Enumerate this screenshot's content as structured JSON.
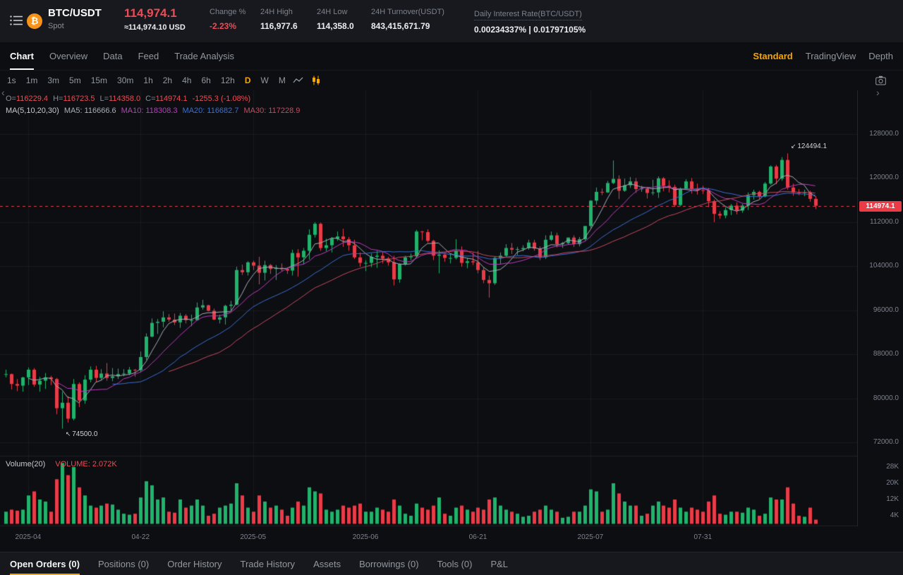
{
  "header": {
    "logo_glyph": "₿",
    "pair": "BTC/USDT",
    "market_type": "Spot",
    "last_price": "114,974.1",
    "usd_price": "≈114,974.10 USD",
    "change_label": "Change %",
    "change_value": "-2.23%",
    "high_label": "24H High",
    "high_value": "116,977.6",
    "low_label": "24H Low",
    "low_value": "114,358.0",
    "turnover_label": "24H Turnover(USDT)",
    "turnover_value": "843,415,671.79",
    "interest_label": "Daily Interest Rate(BTC/USDT)",
    "interest_value": "0.00234337% | 0.01797105%"
  },
  "tabs": {
    "items": [
      {
        "label": "Chart",
        "active": true
      },
      {
        "label": "Overview"
      },
      {
        "label": "Data"
      },
      {
        "label": "Feed"
      },
      {
        "label": "Trade Analysis"
      }
    ],
    "right": [
      {
        "label": "Standard",
        "accent": true
      },
      {
        "label": "TradingView"
      },
      {
        "label": "Depth"
      }
    ]
  },
  "timeframes": {
    "items": [
      "1s",
      "1m",
      "3m",
      "5m",
      "15m",
      "30m",
      "1h",
      "2h",
      "4h",
      "6h",
      "12h",
      "D",
      "W",
      "M"
    ],
    "active": "D"
  },
  "icons": {
    "chevron_left": "‹",
    "chevron_right": "›",
    "high_arrow": "↙",
    "low_arrow": "↖"
  },
  "chart": {
    "ohlc_line": {
      "o_label": "O=",
      "o": "116229.4",
      "h_label": "H=",
      "h": "116723.5",
      "l_label": "L=",
      "l": "114358.0",
      "c_label": "C=",
      "c": "114974.1",
      "change": "-1255.3 (-1.08%)"
    },
    "ma_line": {
      "group": "MA(5,10,20,30)",
      "ma5": "MA5: 116666.6",
      "ma10": "MA10: 118308.3",
      "ma20": "MA20: 116682.7",
      "ma30": "MA30: 117228.9"
    },
    "volume_line": {
      "label": "Volume(20)",
      "value_label": "VOLUME: 2.072K"
    },
    "price_ticks": [
      "128000.0",
      "120000.0",
      "112000.0",
      "104000.0",
      "96000.0",
      "88000.0",
      "80000.0",
      "72000.0"
    ],
    "volume_ticks": [
      "28K",
      "20K",
      "12K",
      "4K"
    ],
    "x_ticks": [
      {
        "label": "2025-04",
        "i": 4
      },
      {
        "label": "04-22",
        "i": 24
      },
      {
        "label": "2025-05",
        "i": 44
      },
      {
        "label": "2025-06",
        "i": 64
      },
      {
        "label": "06-21",
        "i": 84
      },
      {
        "label": "2025-07",
        "i": 104
      },
      {
        "label": "07-31",
        "i": 124
      }
    ],
    "last_price_tag": "114974.1",
    "last_price_value": 114974.1,
    "annotations": {
      "high": {
        "text": "124494.1",
        "i": 139,
        "value": 124494.1
      },
      "low": {
        "text": "74500.0",
        "i": 10,
        "value": 74500
      }
    },
    "colors": {
      "up": "#21b26c",
      "down": "#ea3b47",
      "ma5": "#aab0b9",
      "ma10": "#c13ac1",
      "ma20": "#3c6fd1",
      "ma30": "#c94a5f",
      "accent": "#f7a600",
      "grid": "rgba(255,255,255,0.05)"
    },
    "candles": [
      [
        84400,
        85200,
        83800,
        84400,
        6000
      ],
      [
        84400,
        84500,
        81600,
        82600,
        7000
      ],
      [
        82600,
        83500,
        81300,
        82300,
        6500
      ],
      [
        82300,
        83900,
        81200,
        83800,
        7000
      ],
      [
        83800,
        85600,
        82400,
        85200,
        14000
      ],
      [
        85200,
        85500,
        82100,
        82500,
        16000
      ],
      [
        82500,
        83900,
        81200,
        83200,
        12000
      ],
      [
        83200,
        84600,
        81700,
        83800,
        11000
      ],
      [
        83800,
        84100,
        82400,
        83500,
        6000
      ],
      [
        83500,
        83700,
        77100,
        78200,
        22000
      ],
      [
        78200,
        81200,
        74500,
        79200,
        30000
      ],
      [
        79200,
        80400,
        75600,
        76300,
        24000
      ],
      [
        76300,
        83500,
        76000,
        82600,
        28000
      ],
      [
        82600,
        82900,
        78400,
        79600,
        18000
      ],
      [
        79600,
        84200,
        79000,
        83400,
        14000
      ],
      [
        83400,
        85800,
        82900,
        85200,
        9000
      ],
      [
        85200,
        85900,
        83000,
        83700,
        8000
      ],
      [
        83700,
        85300,
        83300,
        84500,
        9000
      ],
      [
        84500,
        86400,
        83200,
        83700,
        10000
      ],
      [
        83700,
        85500,
        83100,
        84000,
        9500
      ],
      [
        84000,
        85400,
        83500,
        84400,
        7000
      ],
      [
        84400,
        85300,
        84000,
        84500,
        5000
      ],
      [
        84500,
        85700,
        84200,
        85200,
        4500
      ],
      [
        85200,
        85300,
        83900,
        85100,
        5000
      ],
      [
        85100,
        88500,
        84700,
        87500,
        13000
      ],
      [
        87500,
        91800,
        87000,
        91200,
        21000
      ],
      [
        91200,
        94500,
        91100,
        93700,
        19000
      ],
      [
        93700,
        94400,
        91700,
        93900,
        12000
      ],
      [
        93900,
        95800,
        92900,
        94700,
        13000
      ],
      [
        94700,
        95300,
        93900,
        94300,
        6000
      ],
      [
        94300,
        95400,
        93300,
        93800,
        5500
      ],
      [
        93800,
        95500,
        92800,
        95000,
        12000
      ],
      [
        95000,
        95300,
        93600,
        94200,
        8000
      ],
      [
        94200,
        95200,
        93100,
        94200,
        9000
      ],
      [
        94200,
        97400,
        94100,
        96500,
        12000
      ],
      [
        96500,
        97900,
        96100,
        96900,
        9000
      ],
      [
        96900,
        97000,
        95800,
        95900,
        4000
      ],
      [
        95900,
        96300,
        94200,
        94300,
        5000
      ],
      [
        94300,
        95200,
        93600,
        94700,
        8000
      ],
      [
        94700,
        97000,
        93400,
        96800,
        9000
      ],
      [
        96800,
        97700,
        95800,
        97000,
        10000
      ],
      [
        97000,
        103900,
        96900,
        103300,
        20000
      ],
      [
        103300,
        104300,
        102400,
        102900,
        14000
      ],
      [
        102900,
        104900,
        102300,
        104700,
        8000
      ],
      [
        104700,
        105000,
        103300,
        104100,
        6000
      ],
      [
        104100,
        105700,
        100700,
        102800,
        14000
      ],
      [
        102800,
        105000,
        101400,
        104200,
        11000
      ],
      [
        104200,
        104400,
        102600,
        103500,
        8000
      ],
      [
        103500,
        104200,
        101500,
        103700,
        9000
      ],
      [
        103700,
        104500,
        103100,
        103500,
        7000
      ],
      [
        103500,
        103700,
        102600,
        103200,
        4000
      ],
      [
        103200,
        107000,
        102300,
        106400,
        8000
      ],
      [
        106400,
        107100,
        102100,
        105600,
        11000
      ],
      [
        105600,
        107300,
        104300,
        106800,
        9000
      ],
      [
        106800,
        110700,
        105200,
        109700,
        18000
      ],
      [
        109700,
        112000,
        109200,
        111700,
        16000
      ],
      [
        111700,
        111900,
        106800,
        107300,
        15000
      ],
      [
        107300,
        109000,
        106700,
        107800,
        7000
      ],
      [
        107800,
        109300,
        106500,
        109000,
        6000
      ],
      [
        109000,
        110300,
        108600,
        109400,
        7000
      ],
      [
        109400,
        110800,
        107500,
        108900,
        9000
      ],
      [
        108900,
        109300,
        106800,
        107800,
        8000
      ],
      [
        107800,
        108800,
        105300,
        105600,
        9000
      ],
      [
        105600,
        106500,
        103900,
        104600,
        10000
      ],
      [
        104600,
        105100,
        103100,
        104600,
        6000
      ],
      [
        104600,
        106300,
        103800,
        105700,
        6000
      ],
      [
        105700,
        106800,
        103700,
        105900,
        8000
      ],
      [
        105900,
        106600,
        104500,
        105400,
        7000
      ],
      [
        105400,
        105700,
        104100,
        104700,
        6000
      ],
      [
        104700,
        105900,
        100500,
        101600,
        12000
      ],
      [
        101600,
        104500,
        101000,
        104400,
        9000
      ],
      [
        104400,
        105900,
        104100,
        105600,
        5000
      ],
      [
        105600,
        106300,
        105100,
        105800,
        4000
      ],
      [
        105800,
        110600,
        105700,
        110300,
        10000
      ],
      [
        110300,
        110400,
        108700,
        110200,
        8000
      ],
      [
        110200,
        110700,
        108300,
        108600,
        7000
      ],
      [
        108600,
        108800,
        105100,
        105900,
        9000
      ],
      [
        105900,
        106900,
        102700,
        106100,
        13000
      ],
      [
        106100,
        106200,
        104800,
        105500,
        5000
      ],
      [
        105500,
        106300,
        104500,
        105500,
        4000
      ],
      [
        105500,
        108900,
        105200,
        106800,
        8000
      ],
      [
        106800,
        107600,
        103900,
        104600,
        9000
      ],
      [
        104600,
        105500,
        103600,
        104900,
        7000
      ],
      [
        104900,
        106500,
        104200,
        104700,
        6000
      ],
      [
        104700,
        106800,
        102700,
        103300,
        8000
      ],
      [
        103300,
        103800,
        100900,
        101500,
        7000
      ],
      [
        101500,
        102300,
        98300,
        100900,
        12000
      ],
      [
        100900,
        105700,
        100600,
        105500,
        13000
      ],
      [
        105500,
        106500,
        104400,
        105900,
        9000
      ],
      [
        105900,
        108000,
        105700,
        107300,
        7000
      ],
      [
        107300,
        108200,
        106200,
        107000,
        6000
      ],
      [
        107000,
        107500,
        106000,
        107100,
        5000
      ],
      [
        107100,
        107800,
        106700,
        107300,
        3500
      ],
      [
        107300,
        108800,
        107000,
        108300,
        4000
      ],
      [
        108300,
        108800,
        106800,
        107200,
        6000
      ],
      [
        107200,
        107600,
        105100,
        105600,
        7000
      ],
      [
        105600,
        109600,
        105300,
        108800,
        9000
      ],
      [
        108800,
        110300,
        108600,
        109600,
        7000
      ],
      [
        109600,
        110100,
        107400,
        108000,
        6000
      ],
      [
        108000,
        108400,
        107300,
        108200,
        3000
      ],
      [
        108200,
        109200,
        107900,
        109200,
        3500
      ],
      [
        109200,
        109600,
        107500,
        108000,
        6000
      ],
      [
        108000,
        109300,
        107600,
        108900,
        6000
      ],
      [
        108900,
        111300,
        108600,
        111300,
        9000
      ],
      [
        111300,
        116000,
        110900,
        115900,
        17000
      ],
      [
        115900,
        118300,
        115200,
        117500,
        16000
      ],
      [
        117500,
        118100,
        116900,
        117400,
        6000
      ],
      [
        117400,
        119500,
        117300,
        119100,
        7000
      ],
      [
        119100,
        123200,
        118900,
        119850,
        20000
      ],
      [
        119850,
        120500,
        116200,
        117700,
        15000
      ],
      [
        117700,
        119900,
        117500,
        118700,
        11000
      ],
      [
        118700,
        120200,
        118200,
        119400,
        9000
      ],
      [
        119400,
        120000,
        117300,
        118000,
        9000
      ],
      [
        118000,
        118600,
        117500,
        118100,
        4000
      ],
      [
        118100,
        118400,
        116300,
        117300,
        5000
      ],
      [
        117300,
        119700,
        116900,
        117400,
        9000
      ],
      [
        117400,
        120300,
        116400,
        119950,
        11000
      ],
      [
        119950,
        120200,
        117600,
        118600,
        9000
      ],
      [
        118600,
        119600,
        117400,
        118400,
        8000
      ],
      [
        118400,
        118800,
        114800,
        115100,
        12000
      ],
      [
        115100,
        118300,
        114900,
        118100,
        8000
      ],
      [
        118100,
        119800,
        117900,
        119400,
        6000
      ],
      [
        119400,
        120000,
        117200,
        118000,
        8000
      ],
      [
        118000,
        119000,
        117000,
        117800,
        7000
      ],
      [
        117800,
        118600,
        117100,
        117700,
        6000
      ],
      [
        117700,
        118200,
        114700,
        115800,
        11000
      ],
      [
        115800,
        116100,
        112000,
        113500,
        14000
      ],
      [
        113500,
        114000,
        112600,
        113200,
        5000
      ],
      [
        113200,
        114700,
        112700,
        114200,
        4500
      ],
      [
        114200,
        115300,
        113300,
        115000,
        6000
      ],
      [
        115000,
        115600,
        113400,
        114100,
        6000
      ],
      [
        114100,
        115300,
        113700,
        115000,
        5500
      ],
      [
        115000,
        117400,
        114200,
        116900,
        8000
      ],
      [
        116900,
        117900,
        116100,
        117500,
        7000
      ],
      [
        117500,
        117700,
        116200,
        116700,
        4000
      ],
      [
        116700,
        119300,
        116500,
        119000,
        5000
      ],
      [
        119000,
        122300,
        118800,
        122100,
        13000
      ],
      [
        122100,
        122400,
        118900,
        119900,
        12000
      ],
      [
        119900,
        123800,
        119500,
        123300,
        12000
      ],
      [
        123300,
        124494.1,
        117900,
        118300,
        18000
      ],
      [
        118300,
        119000,
        116800,
        117400,
        10000
      ],
      [
        117400,
        118000,
        116900,
        117300,
        4000
      ],
      [
        117300,
        117900,
        116700,
        117450,
        3500
      ],
      [
        117450,
        117700,
        115700,
        116229.4,
        8000
      ],
      [
        116229.4,
        116723.5,
        114358,
        114974.1,
        2072
      ]
    ]
  },
  "bottom_tabs": [
    {
      "label": "Open Orders (0)",
      "active": true
    },
    {
      "label": "Positions (0)"
    },
    {
      "label": "Order History"
    },
    {
      "label": "Trade History"
    },
    {
      "label": "Assets"
    },
    {
      "label": "Borrowings (0)"
    },
    {
      "label": "Tools (0)"
    },
    {
      "label": "P&L"
    }
  ]
}
